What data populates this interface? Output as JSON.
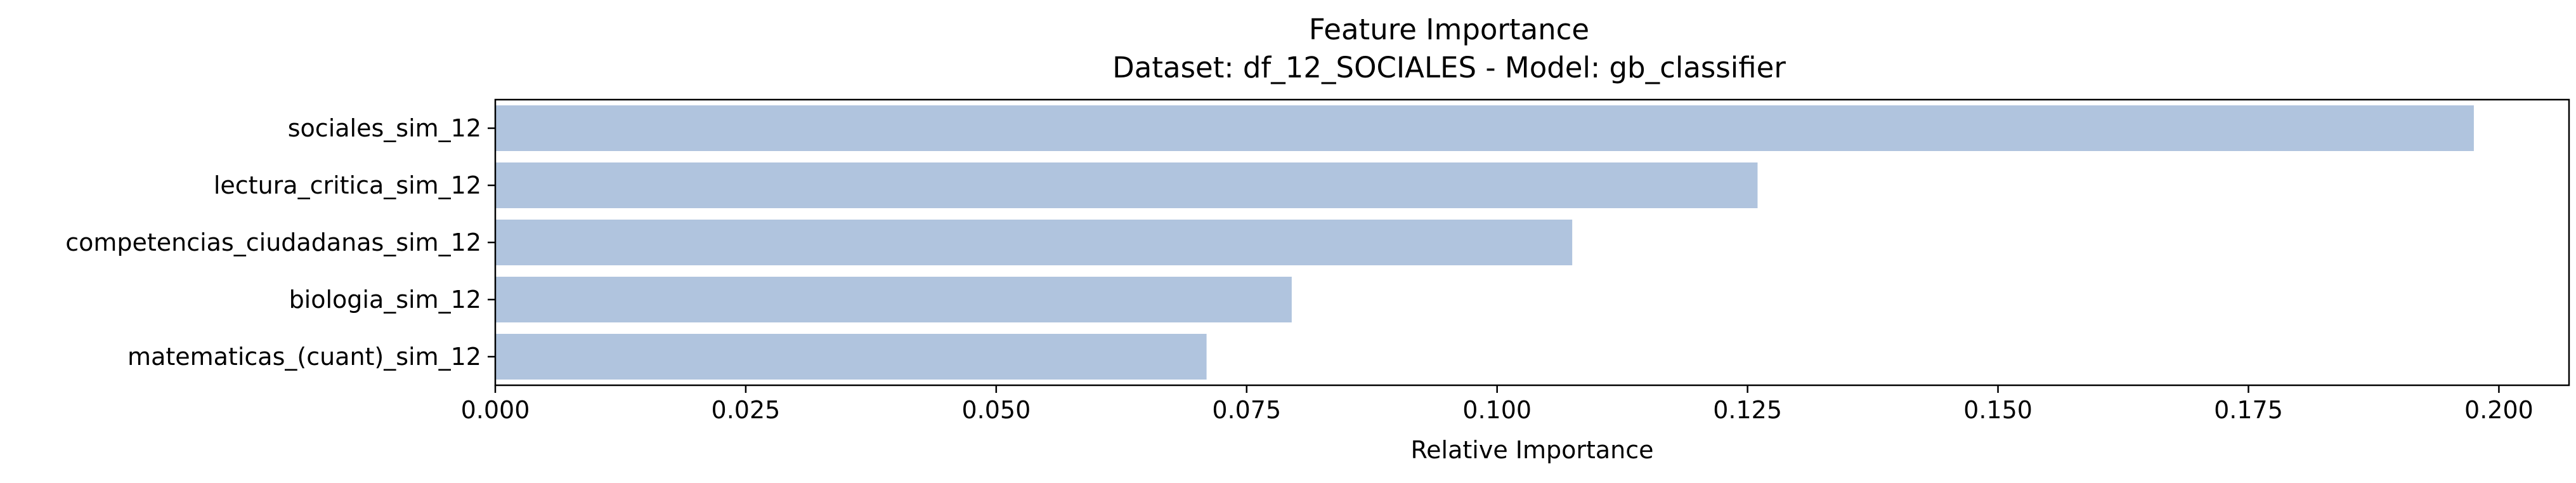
{
  "chart_data": {
    "type": "bar",
    "orientation": "horizontal",
    "title": "Feature Importance",
    "subtitle": "Dataset: df_12_SOCIALES  -  Model: gb_classifier",
    "xlabel": "Relative Importance",
    "ylabel": "",
    "xlim": [
      0.0,
      0.207
    ],
    "xticks": [
      0.0,
      0.025,
      0.05,
      0.075,
      0.1,
      0.125,
      0.15,
      0.175,
      0.2
    ],
    "xtick_labels": [
      "0.000",
      "0.025",
      "0.050",
      "0.075",
      "0.100",
      "0.125",
      "0.150",
      "0.175",
      "0.200"
    ],
    "categories": [
      "sociales_sim_12",
      "lectura_critica_sim_12",
      "competencias_ciudadanas_sim_12",
      "biologia_sim_12",
      "matematicas_(cuant)_sim_12"
    ],
    "values": [
      0.1975,
      0.126,
      0.1075,
      0.0795,
      0.071
    ],
    "bar_color": "#b0c4de",
    "grid": false,
    "legend": "none"
  }
}
